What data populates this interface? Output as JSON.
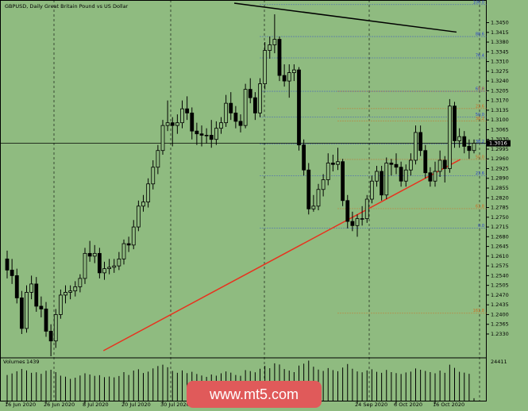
{
  "chart_data": {
    "type": "candlestick",
    "title": "GBPUSD, Daily",
    "subtitle": "Great Britain Pound vs US Dollar",
    "background": "#8fbb80",
    "up_fill": "#8fbb80",
    "down_fill": "#000000",
    "outline": "#000000",
    "ylim": [
      1.225,
      1.352
    ],
    "yticks": [
      {
        "value": 1.233,
        "label": "1.2330"
      },
      {
        "value": 1.2365,
        "label": "1.2365"
      },
      {
        "value": 1.24,
        "label": "1.2400"
      },
      {
        "value": 1.2435,
        "label": "1.2435"
      },
      {
        "value": 1.247,
        "label": "1.2470"
      },
      {
        "value": 1.2505,
        "label": "1.2505"
      },
      {
        "value": 1.254,
        "label": "1.2540"
      },
      {
        "value": 1.2575,
        "label": "1.2575"
      },
      {
        "value": 1.261,
        "label": "1.2610"
      },
      {
        "value": 1.2645,
        "label": "1.2645"
      },
      {
        "value": 1.268,
        "label": "1.2680"
      },
      {
        "value": 1.2715,
        "label": "1.2715"
      },
      {
        "value": 1.275,
        "label": "1.2750"
      },
      {
        "value": 1.2785,
        "label": "1.2785"
      },
      {
        "value": 1.282,
        "label": "1.2820"
      },
      {
        "value": 1.2855,
        "label": "1.2855"
      },
      {
        "value": 1.289,
        "label": "1.2890"
      },
      {
        "value": 1.2925,
        "label": "1.2925"
      },
      {
        "value": 1.296,
        "label": "1.2960"
      },
      {
        "value": 1.2995,
        "label": "1.2995"
      },
      {
        "value": 1.303,
        "label": "1.3030"
      },
      {
        "value": 1.3065,
        "label": "1.3065"
      },
      {
        "value": 1.31,
        "label": "1.3100"
      },
      {
        "value": 1.3135,
        "label": "1.3135"
      },
      {
        "value": 1.317,
        "label": "1.3170"
      },
      {
        "value": 1.3205,
        "label": "1.3205"
      },
      {
        "value": 1.324,
        "label": "1.3240"
      },
      {
        "value": 1.3275,
        "label": "1.3275"
      },
      {
        "value": 1.331,
        "label": "1.3310"
      },
      {
        "value": 1.3345,
        "label": "1.3345"
      },
      {
        "value": 1.338,
        "label": "1.3380"
      },
      {
        "value": 1.3415,
        "label": "1.3415"
      },
      {
        "value": 1.345,
        "label": "1.3450"
      }
    ],
    "x_labels": [
      {
        "index": 0,
        "label": "16 Jun 2020"
      },
      {
        "index": 8,
        "label": "26 Jun 2020"
      },
      {
        "index": 16,
        "label": "8 Jul 2020"
      },
      {
        "index": 24,
        "label": "20 Jul 2020"
      },
      {
        "index": 32,
        "label": "30 Jul 2020"
      },
      {
        "index": 72,
        "label": "24 Sep 2020"
      },
      {
        "index": 80,
        "label": "6 Oct 2020"
      },
      {
        "index": 88,
        "label": "16 Oct 2020"
      }
    ],
    "ohlc": [
      [
        1.26,
        1.263,
        1.253,
        1.256
      ],
      [
        1.256,
        1.26,
        1.251,
        1.254
      ],
      [
        1.254,
        1.2565,
        1.244,
        1.246
      ],
      [
        1.246,
        1.2485,
        1.233,
        1.235
      ],
      [
        1.235,
        1.2505,
        1.2335,
        1.248
      ],
      [
        1.248,
        1.254,
        1.2455,
        1.251
      ],
      [
        1.251,
        1.2535,
        1.241,
        1.243
      ],
      [
        1.243,
        1.2465,
        1.239,
        1.242
      ],
      [
        1.242,
        1.2445,
        1.232,
        1.234
      ],
      [
        1.234,
        1.2365,
        1.225,
        1.2305
      ],
      [
        1.2305,
        1.242,
        1.228,
        1.24
      ],
      [
        1.24,
        1.249,
        1.2385,
        1.247
      ],
      [
        1.247,
        1.2505,
        1.244,
        1.248
      ],
      [
        1.248,
        1.2505,
        1.2455,
        1.2485
      ],
      [
        1.2485,
        1.252,
        1.2465,
        1.25
      ],
      [
        1.25,
        1.2545,
        1.248,
        1.253
      ],
      [
        1.253,
        1.264,
        1.251,
        1.262
      ],
      [
        1.262,
        1.2665,
        1.259,
        1.261
      ],
      [
        1.261,
        1.265,
        1.2585,
        1.262
      ],
      [
        1.262,
        1.264,
        1.253,
        1.255
      ],
      [
        1.255,
        1.259,
        1.2525,
        1.2565
      ],
      [
        1.2565,
        1.26,
        1.2545,
        1.257
      ],
      [
        1.257,
        1.26,
        1.255,
        1.2575
      ],
      [
        1.2575,
        1.2625,
        1.256,
        1.26
      ],
      [
        1.26,
        1.267,
        1.258,
        1.2655
      ],
      [
        1.2655,
        1.268,
        1.2625,
        1.265
      ],
      [
        1.265,
        1.274,
        1.2635,
        1.2715
      ],
      [
        1.2715,
        1.281,
        1.27,
        1.279
      ],
      [
        1.279,
        1.283,
        1.277,
        1.2805
      ],
      [
        1.2805,
        1.289,
        1.2785,
        1.287
      ],
      [
        1.287,
        1.2955,
        1.285,
        1.293
      ],
      [
        1.293,
        1.301,
        1.2905,
        1.299
      ],
      [
        1.299,
        1.31,
        1.2975,
        1.308
      ],
      [
        1.308,
        1.317,
        1.306,
        1.309
      ],
      [
        1.309,
        1.311,
        1.3005,
        1.308
      ],
      [
        1.308,
        1.312,
        1.305,
        1.309
      ],
      [
        1.309,
        1.317,
        1.307,
        1.314
      ],
      [
        1.314,
        1.3185,
        1.31,
        1.3125
      ],
      [
        1.3125,
        1.3145,
        1.303,
        1.306
      ],
      [
        1.306,
        1.309,
        1.301,
        1.305
      ],
      [
        1.305,
        1.308,
        1.3005,
        1.3045
      ],
      [
        1.3045,
        1.307,
        1.3015,
        1.3045
      ],
      [
        1.3045,
        1.31,
        1.3,
        1.303
      ],
      [
        1.303,
        1.3095,
        1.301,
        1.307
      ],
      [
        1.307,
        1.311,
        1.305,
        1.309
      ],
      [
        1.309,
        1.319,
        1.3075,
        1.316
      ],
      [
        1.316,
        1.32,
        1.31,
        1.3125
      ],
      [
        1.3125,
        1.315,
        1.307,
        1.3095
      ],
      [
        1.3095,
        1.312,
        1.3055,
        1.308
      ],
      [
        1.308,
        1.323,
        1.307,
        1.321
      ],
      [
        1.321,
        1.325,
        1.316,
        1.318
      ],
      [
        1.318,
        1.32,
        1.31,
        1.3125
      ],
      [
        1.3125,
        1.325,
        1.311,
        1.323
      ],
      [
        1.323,
        1.338,
        1.321,
        1.335
      ],
      [
        1.335,
        1.34,
        1.332,
        1.337
      ],
      [
        1.337,
        1.348,
        1.334,
        1.339
      ],
      [
        1.339,
        1.34,
        1.324,
        1.326
      ],
      [
        1.326,
        1.33,
        1.322,
        1.324
      ],
      [
        1.324,
        1.33,
        1.318,
        1.327
      ],
      [
        1.327,
        1.33,
        1.324,
        1.328
      ],
      [
        1.328,
        1.329,
        1.299,
        1.301
      ],
      [
        1.301,
        1.303,
        1.29,
        1.292
      ],
      [
        1.292,
        1.2945,
        1.276,
        1.278
      ],
      [
        1.278,
        1.283,
        1.277,
        1.279
      ],
      [
        1.279,
        1.287,
        1.2775,
        1.285
      ],
      [
        1.285,
        1.2905,
        1.2825,
        1.2885
      ],
      [
        1.2885,
        1.298,
        1.2865,
        1.2945
      ],
      [
        1.2945,
        1.2975,
        1.2915,
        1.294
      ],
      [
        1.294,
        1.3,
        1.292,
        1.295
      ],
      [
        1.295,
        1.296,
        1.279,
        1.281
      ],
      [
        1.281,
        1.283,
        1.271,
        1.2735
      ],
      [
        1.2735,
        1.277,
        1.27,
        1.272
      ],
      [
        1.272,
        1.276,
        1.268,
        1.2745
      ],
      [
        1.2745,
        1.279,
        1.272,
        1.2745
      ],
      [
        1.2745,
        1.283,
        1.273,
        1.2815
      ],
      [
        1.2815,
        1.29,
        1.28,
        1.288
      ],
      [
        1.288,
        1.2935,
        1.286,
        1.2915
      ],
      [
        1.2915,
        1.2935,
        1.281,
        1.283
      ],
      [
        1.283,
        1.2965,
        1.2815,
        1.2945
      ],
      [
        1.2945,
        1.296,
        1.29,
        1.294
      ],
      [
        1.294,
        1.298,
        1.2905,
        1.293
      ],
      [
        1.293,
        1.295,
        1.286,
        1.288
      ],
      [
        1.288,
        1.294,
        1.286,
        1.292
      ],
      [
        1.292,
        1.298,
        1.29,
        1.2955
      ],
      [
        1.2955,
        1.308,
        1.294,
        1.3055
      ],
      [
        1.3055,
        1.308,
        1.297,
        1.299
      ],
      [
        1.299,
        1.301,
        1.289,
        1.291
      ],
      [
        1.291,
        1.293,
        1.286,
        1.288
      ],
      [
        1.288,
        1.295,
        1.286,
        1.2915
      ],
      [
        1.2915,
        1.299,
        1.2895,
        1.2955
      ],
      [
        1.2955,
        1.297,
        1.2875,
        1.2925
      ],
      [
        1.2925,
        1.3175,
        1.291,
        1.315
      ],
      [
        1.315,
        1.3165,
        1.3,
        1.3025
      ],
      [
        1.3025,
        1.307,
        1.3,
        1.304
      ],
      [
        1.304,
        1.306,
        1.298,
        1.3005
      ],
      [
        1.3005,
        1.303,
        1.296,
        1.299
      ],
      [
        1.299,
        1.303,
        1.298,
        1.3016
      ]
    ],
    "volume_label": "Volumes",
    "volume_ylim": [
      0,
      24411
    ],
    "volumes": [
      15200,
      16100,
      17400,
      18800,
      17900,
      16500,
      16800,
      15900,
      17700,
      18300,
      16900,
      14800,
      14200,
      12900,
      13600,
      14900,
      16200,
      15500,
      14700,
      15100,
      13900,
      14300,
      13800,
      14600,
      16900,
      15200,
      17800,
      18600,
      16400,
      17200,
      19100,
      20500,
      21300,
      19800,
      17600,
      16500,
      17900,
      16300,
      17100,
      15800,
      14900,
      14100,
      15500,
      14800,
      16200,
      17300,
      16600,
      15200,
      14700,
      18100,
      17500,
      16800,
      18900,
      20600,
      19200,
      22100,
      21400,
      18700,
      17800,
      16900,
      20800,
      21900,
      23700,
      20100,
      18400,
      17600,
      19300,
      18100,
      17400,
      19600,
      21700,
      18900,
      17300,
      16800,
      17900,
      18600,
      17100,
      16500,
      18200,
      16900,
      16300,
      15800,
      16700,
      17200,
      19100,
      18300,
      17600,
      16900,
      16200,
      17800,
      16500,
      21300,
      19400,
      17100,
      16600,
      15900,
      1439
    ],
    "fib_sets": [
      {
        "color": "#2a3fd0",
        "from_index": 52,
        "levels": [
          {
            "label": "100.0",
            "price": 1.3515
          },
          {
            "label": "88.6",
            "price": 1.34
          },
          {
            "label": "76.4",
            "price": 1.3323
          },
          {
            "label": "61.8",
            "price": 1.3203
          },
          {
            "label": "50.0",
            "price": 1.311
          },
          {
            "label": "38.2",
            "price": 1.3014
          },
          {
            "label": "23.6",
            "price": 1.2899
          },
          {
            "label": "0.0",
            "price": 1.2711
          }
        ]
      },
      {
        "color": "#d2691e",
        "from_index": 68,
        "levels": [
          {
            "label": "0.0",
            "price": 1.3203
          },
          {
            "label": "23.6",
            "price": 1.3141
          },
          {
            "label": "38.2",
            "price": 1.3096
          },
          {
            "label": "50.0",
            "price": 1.2958
          },
          {
            "label": "61.8",
            "price": 1.2781
          },
          {
            "label": "161.8",
            "price": 1.2405
          }
        ]
      }
    ],
    "trendlines": [
      {
        "color": "#e8321e",
        "points": [
          [
            19.8,
            1.227
          ],
          [
            93.2,
            1.2958
          ]
        ]
      },
      {
        "color": "#000000",
        "points": [
          [
            46.7,
            1.352
          ],
          [
            92.4,
            1.3416
          ]
        ]
      }
    ],
    "watermark": "www.mt5.com"
  }
}
